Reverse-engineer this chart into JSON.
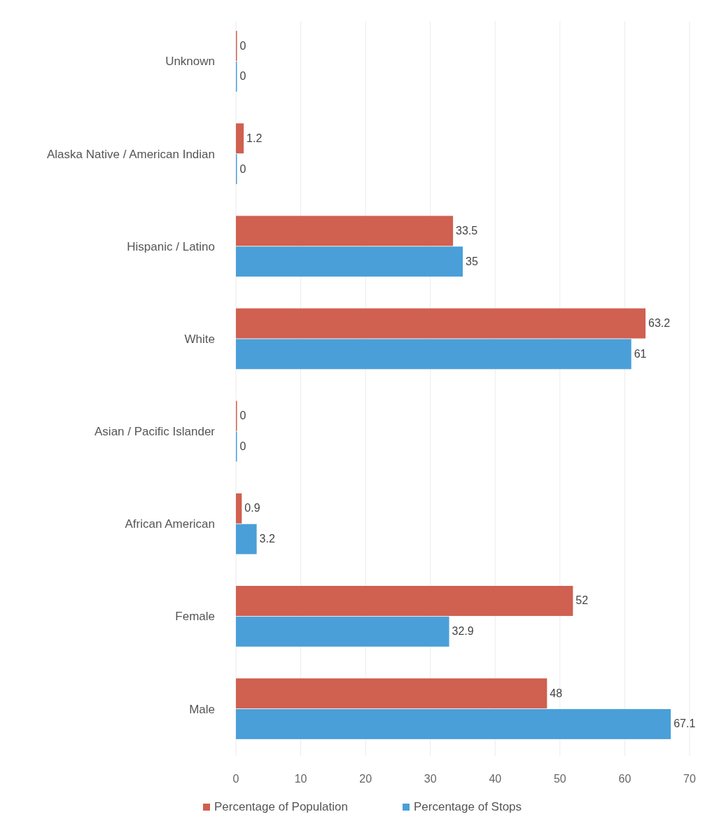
{
  "chart_data": {
    "type": "bar",
    "orientation": "horizontal",
    "categories": [
      "Unknown",
      "Alaska Native / American Indian",
      "Hispanic / Latino",
      "White",
      "Asian / Pacific Islander",
      "African American",
      "Female",
      "Male"
    ],
    "series": [
      {
        "name": "Percentage of Population",
        "color": "#d0604f",
        "values": [
          0,
          1.2,
          33.5,
          63.2,
          0,
          0.9,
          52,
          48
        ]
      },
      {
        "name": "Percentage of Stops",
        "color": "#4a9fd8",
        "values": [
          0,
          0,
          35,
          61,
          0,
          3.2,
          32.9,
          67.1
        ]
      }
    ],
    "xlim": [
      0,
      70
    ],
    "xticks": [
      0,
      10,
      20,
      30,
      40,
      50,
      60,
      70
    ],
    "grid": "x",
    "legend": "bottom",
    "data_labels": true
  }
}
